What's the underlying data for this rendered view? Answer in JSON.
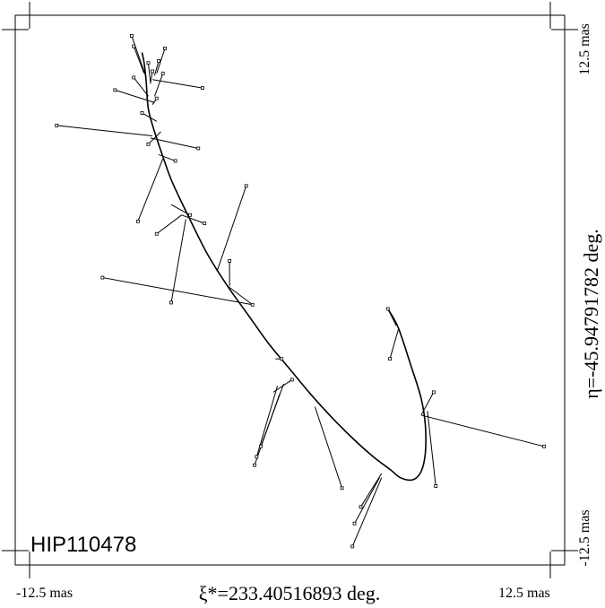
{
  "chart_data": {
    "type": "scatter",
    "title": "HIP110478",
    "xlabel": "ξ*=233.40516893 deg.",
    "ylabel": "η=-45.94791782 deg.",
    "xlim": [
      -12.5,
      12.5
    ],
    "ylim": [
      -12.5,
      12.5
    ],
    "x_tick_labels": [
      "-12.5 mas",
      "12.5 mas"
    ],
    "y_tick_labels": [
      "-12.5 mas",
      "12.5 mas"
    ],
    "grid": false,
    "orbit_path": [
      [
        -7.1,
        11.4
      ],
      [
        -7.0,
        10.9
      ],
      [
        -6.9,
        10.0
      ],
      [
        -6.8,
        8.7
      ],
      [
        -6.5,
        7.6
      ],
      [
        -6.2,
        6.7
      ],
      [
        -5.7,
        5.3
      ],
      [
        -5.0,
        3.8
      ],
      [
        -4.0,
        1.8
      ],
      [
        -3.0,
        0.2
      ],
      [
        -2.0,
        -1.2
      ],
      [
        -1.0,
        -2.6
      ],
      [
        0.0,
        -3.8
      ],
      [
        1.0,
        -5.0
      ],
      [
        2.0,
        -6.1
      ],
      [
        3.0,
        -7.1
      ],
      [
        4.0,
        -8.0
      ],
      [
        4.8,
        -8.6
      ],
      [
        5.3,
        -9.0
      ],
      [
        5.9,
        -9.1
      ],
      [
        6.3,
        -8.7
      ],
      [
        6.5,
        -7.8
      ],
      [
        6.5,
        -6.5
      ],
      [
        6.3,
        -5.2
      ],
      [
        5.8,
        -3.6
      ],
      [
        5.2,
        -1.8
      ],
      [
        4.7,
        -0.9
      ]
    ],
    "observations": [
      {
        "x": -7.6,
        "y": 12.2,
        "px": -6.9,
        "py": 10.2
      },
      {
        "x": -7.5,
        "y": 11.7,
        "px": -7.0,
        "py": 10.4
      },
      {
        "x": -6.0,
        "y": 11.6,
        "px": -6.4,
        "py": 10.4
      },
      {
        "x": -6.3,
        "y": 11.0,
        "px": -6.5,
        "py": 10.3
      },
      {
        "x": -6.8,
        "y": 10.9,
        "px": -6.7,
        "py": 10.0
      },
      {
        "x": -6.6,
        "y": 10.5,
        "px": -6.7,
        "py": 9.9
      },
      {
        "x": -6.1,
        "y": 10.4,
        "px": -6.5,
        "py": 9.3
      },
      {
        "x": -7.5,
        "y": 10.2,
        "px": -6.8,
        "py": 9.3
      },
      {
        "x": -4.2,
        "y": 9.7,
        "px": -6.6,
        "py": 10.1
      },
      {
        "x": -8.4,
        "y": 9.6,
        "px": -6.5,
        "py": 9.0
      },
      {
        "x": -6.4,
        "y": 9.2,
        "px": -6.6,
        "py": 8.9
      },
      {
        "x": -7.1,
        "y": 8.5,
        "px": -6.4,
        "py": 8.1
      },
      {
        "x": -11.2,
        "y": 7.9,
        "px": -6.6,
        "py": 7.4
      },
      {
        "x": -4.4,
        "y": 6.8,
        "px": -6.7,
        "py": 7.3
      },
      {
        "x": -6.8,
        "y": 7.0,
        "px": -6.2,
        "py": 7.6
      },
      {
        "x": -5.5,
        "y": 6.2,
        "px": -6.3,
        "py": 6.5
      },
      {
        "x": -7.3,
        "y": 3.3,
        "px": -6.1,
        "py": 6.3
      },
      {
        "x": -4.8,
        "y": 3.6,
        "px": -5.7,
        "py": 4.1
      },
      {
        "x": -4.1,
        "y": 3.2,
        "px": -5.2,
        "py": 3.6
      },
      {
        "x": -2.1,
        "y": 5.0,
        "px": -3.5,
        "py": 0.9
      },
      {
        "x": -2.9,
        "y": 1.4,
        "px": -2.9,
        "py": 0.2
      },
      {
        "x": -6.4,
        "y": 2.7,
        "px": -5.2,
        "py": 3.6
      },
      {
        "x": -5.7,
        "y": -0.6,
        "px": -5.0,
        "py": 3.4
      },
      {
        "x": -9.0,
        "y": 0.6,
        "px": -1.8,
        "py": -0.7
      },
      {
        "x": -1.8,
        "y": -0.7,
        "px": -3.0,
        "py": 0.2
      },
      {
        "x": -0.4,
        "y": -3.3,
        "px": -0.7,
        "py": -3.3
      },
      {
        "x": -1.6,
        "y": -8.0,
        "px": -0.6,
        "py": -4.6
      },
      {
        "x": -1.4,
        "y": -7.5,
        "px": -0.3,
        "py": -4.5
      },
      {
        "x": -1.7,
        "y": -8.4,
        "px": -0.5,
        "py": -5.0
      },
      {
        "x": 0.1,
        "y": -4.3,
        "px": -0.8,
        "py": -4.9
      },
      {
        "x": 2.5,
        "y": -9.5,
        "px": 1.2,
        "py": -5.6
      },
      {
        "x": 3.4,
        "y": -10.4,
        "px": 4.4,
        "py": -8.8
      },
      {
        "x": 3.1,
        "y": -11.2,
        "px": 4.3,
        "py": -9.0
      },
      {
        "x": 3.0,
        "y": -12.3,
        "px": 4.4,
        "py": -9.0
      },
      {
        "x": 4.7,
        "y": -0.9,
        "px": 5.1,
        "py": -1.7
      },
      {
        "x": 4.8,
        "y": -3.3,
        "px": 5.2,
        "py": -1.9
      },
      {
        "x": 6.9,
        "y": -4.9,
        "px": 6.3,
        "py": -6.0
      },
      {
        "x": 12.2,
        "y": -7.5,
        "px": 6.3,
        "py": -6.0
      },
      {
        "x": 7.0,
        "y": -9.4,
        "px": 6.6,
        "py": -5.8
      }
    ]
  }
}
